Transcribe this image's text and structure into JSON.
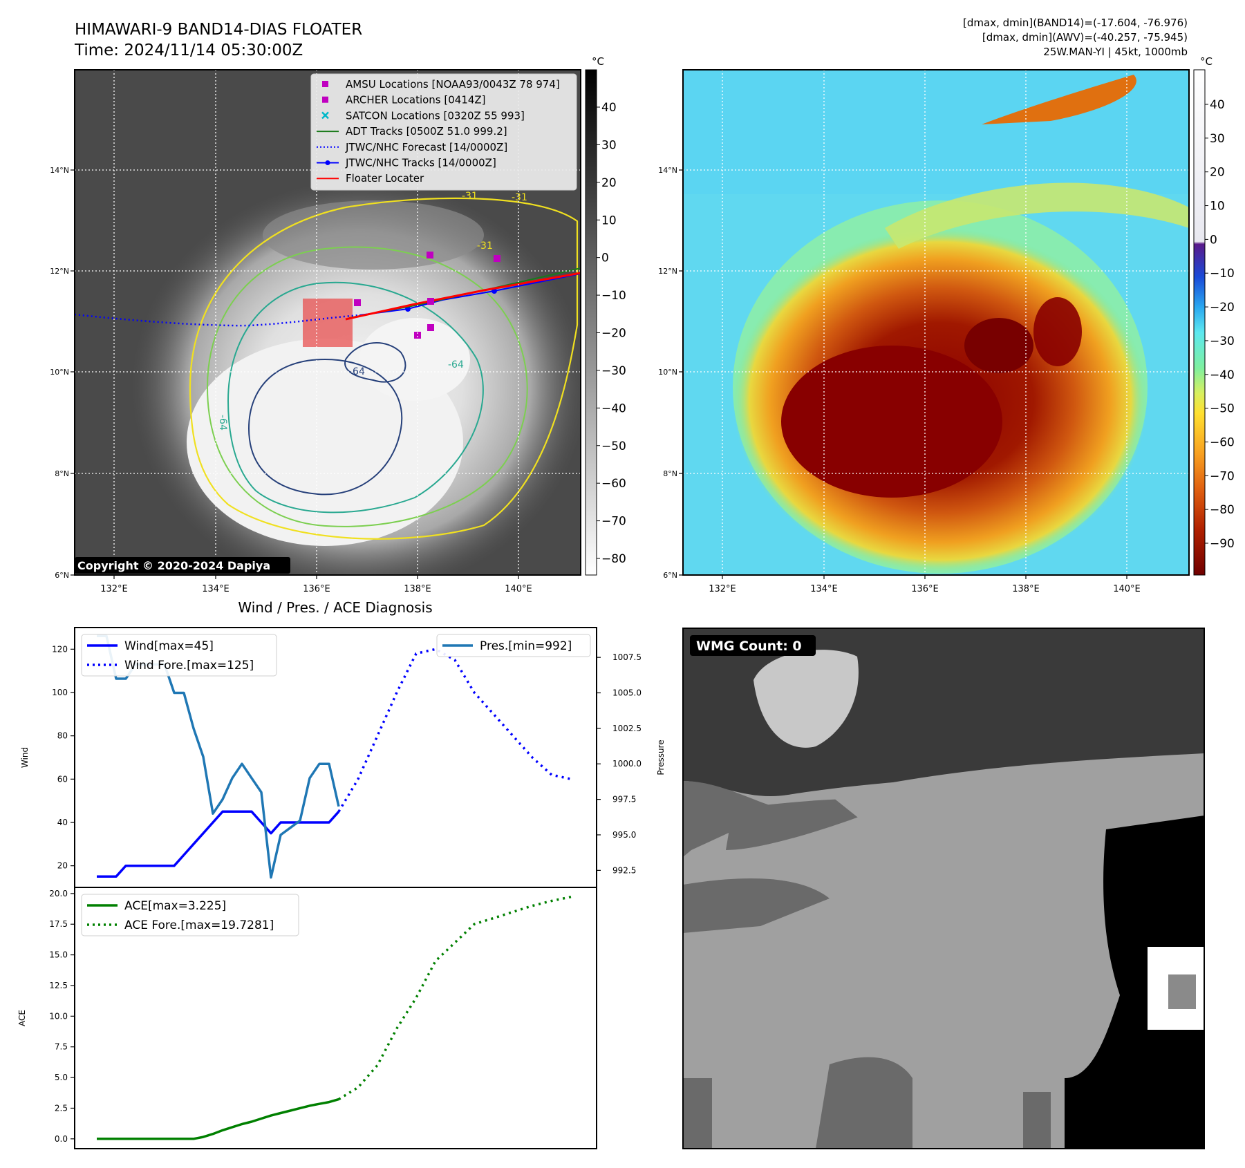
{
  "header": {
    "title": "HIMAWARI-9 BAND14-DIAS FLOATER",
    "time": "Time: 2024/11/14 05:30:00Z",
    "dmax_band14": "[dmax, dmin](BAND14)=(-17.604, -76.976)",
    "dmax_awv": "[dmax, dmin](AWV)=(-40.257, -75.945)",
    "storm": "25W.MAN-YI | 45kt, 1000mb"
  },
  "map": {
    "lon_ticks": [
      "132°E",
      "134°E",
      "136°E",
      "138°E",
      "140°E"
    ],
    "lat_ticks": [
      "14°N",
      "12°N",
      "10°N",
      "8°N",
      "6°N"
    ],
    "unit": "°C",
    "ir_colorbar_ticks": [
      "40",
      "30",
      "20",
      "10",
      "0",
      "−10",
      "−20",
      "−30",
      "−40",
      "−50",
      "−60",
      "−70",
      "−80"
    ],
    "awv_colorbar_ticks": [
      "40",
      "30",
      "20",
      "10",
      "0",
      "−10",
      "−20",
      "−30",
      "−40",
      "−50",
      "−60",
      "−70",
      "−80",
      "−90"
    ],
    "copyright": "Copyright © 2020-2024 Dapiya",
    "contour_labels": [
      "-31",
      "-31",
      "-31",
      "-64",
      "-64",
      "-64"
    ],
    "legend": [
      {
        "label": "AMSU Locations [NOAA93/0043Z 78 974]",
        "kind": "square",
        "color": "#c000c0"
      },
      {
        "label": "ARCHER Locations [0414Z]",
        "kind": "square",
        "color": "#c000c0"
      },
      {
        "label": "SATCON Locations [0320Z 55 993]",
        "kind": "x",
        "color": "#00b8c8"
      },
      {
        "label": "ADT Tracks [0500Z 51.0 999.2]",
        "kind": "line",
        "color": "#1a7a1a"
      },
      {
        "label": "JTWC/NHC Forecast [14/0000Z]",
        "kind": "dotted",
        "color": "#0000ff"
      },
      {
        "label": "JTWC/NHC Tracks [14/0000Z]",
        "kind": "linedot",
        "color": "#0000ff"
      },
      {
        "label": "Floater Locater",
        "kind": "line",
        "color": "#ff0000"
      }
    ]
  },
  "diagnosis": {
    "title": "Wind / Pres. / ACE Diagnosis",
    "wind_ylabel": "Wind",
    "pres_ylabel": "Pressure",
    "ace_ylabel": "ACE",
    "legend_wind": "Wind[max=45]",
    "legend_wind_fore": "Wind Fore.[max=125]",
    "legend_pres": "Pres.[min=992]",
    "legend_ace": "ACE[max=3.225]",
    "legend_ace_fore": "ACE Fore.[max=19.7281]"
  },
  "wmg": {
    "label": "WMG Count: 0"
  },
  "chart_data": [
    {
      "type": "line",
      "title": "Wind / Pres. / ACE Diagnosis",
      "ylabel": "Wind",
      "ylim": [
        10,
        130
      ],
      "yticks": [
        20,
        40,
        60,
        80,
        100,
        120
      ],
      "series": [
        {
          "name": "Wind[max=45]",
          "color": "#0000ff",
          "style": "solid",
          "x": [
            0,
            1,
            2,
            3,
            4,
            5,
            6,
            7,
            8,
            9,
            10,
            11,
            12,
            13,
            14,
            15,
            16,
            17,
            18,
            19,
            20,
            21,
            22,
            23,
            24,
            25
          ],
          "values": [
            15,
            15,
            15,
            20,
            20,
            20,
            20,
            20,
            20,
            25,
            30,
            35,
            40,
            45,
            45,
            45,
            45,
            40,
            35,
            40,
            40,
            40,
            40,
            40,
            40,
            45
          ]
        },
        {
          "name": "Wind Fore.[max=125]",
          "color": "#0000ff",
          "style": "dotted",
          "x": [
            25,
            27,
            29,
            31,
            33,
            35,
            37,
            39,
            41,
            43,
            45,
            47,
            49
          ],
          "values": [
            45,
            60,
            80,
            100,
            118,
            120,
            115,
            100,
            90,
            80,
            70,
            62,
            60
          ]
        }
      ]
    },
    {
      "type": "line",
      "ylabel": "Pressure",
      "ylim": [
        991.3,
        1009.6
      ],
      "yticks": [
        992.5,
        995.0,
        997.5,
        1000.0,
        1002.5,
        1005.0,
        1007.5
      ],
      "series": [
        {
          "name": "Pres.[min=992]",
          "color": "#1f77b4",
          "style": "solid",
          "x": [
            0,
            1,
            2,
            3,
            4,
            5,
            6,
            7,
            8,
            9,
            10,
            11,
            12,
            13,
            14,
            15,
            16,
            17,
            18,
            19,
            20,
            21,
            22,
            23,
            24,
            25
          ],
          "values": [
            1009,
            1009,
            1006,
            1006,
            1007,
            1007,
            1007,
            1007,
            1005,
            1005,
            1002.5,
            1000.5,
            996.5,
            997.5,
            999,
            1000,
            999,
            998,
            992,
            995,
            995.5,
            996,
            999,
            1000,
            1000,
            997
          ]
        }
      ]
    },
    {
      "type": "line",
      "ylabel": "ACE",
      "ylim": [
        -0.8,
        20.5
      ],
      "yticks": [
        0.0,
        2.5,
        5.0,
        7.5,
        10.0,
        12.5,
        15.0,
        17.5,
        20.0
      ],
      "series": [
        {
          "name": "ACE[max=3.225]",
          "color": "#008000",
          "style": "solid",
          "x": [
            0,
            2,
            4,
            6,
            8,
            10,
            11,
            12,
            13,
            14,
            15,
            16,
            17,
            18,
            19,
            20,
            21,
            22,
            23,
            24,
            25
          ],
          "values": [
            0,
            0,
            0,
            0,
            0,
            0,
            0.15,
            0.4,
            0.7,
            0.95,
            1.2,
            1.4,
            1.65,
            1.9,
            2.1,
            2.3,
            2.5,
            2.7,
            2.85,
            3.0,
            3.225
          ]
        },
        {
          "name": "ACE Fore.[max=19.7281]",
          "color": "#008000",
          "style": "dotted",
          "x": [
            25,
            27,
            29,
            31,
            33,
            35,
            37,
            39,
            41,
            43,
            45,
            47,
            49
          ],
          "values": [
            3.225,
            4.2,
            6.0,
            9.0,
            11.5,
            14.5,
            16.0,
            17.5,
            18.0,
            18.5,
            19.0,
            19.4,
            19.7281
          ]
        }
      ]
    }
  ]
}
